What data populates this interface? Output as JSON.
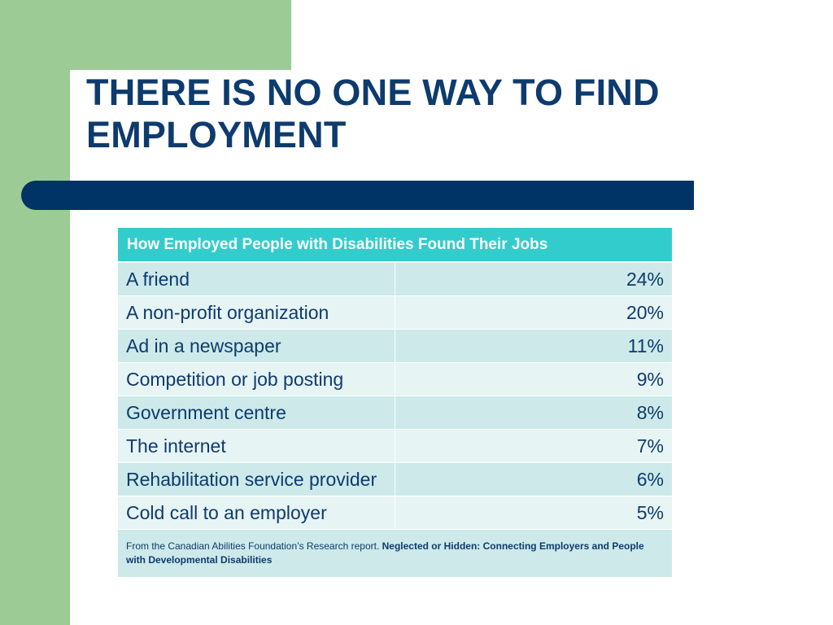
{
  "slide": {
    "title_lines": [
      "THERE IS NO ONE WAY TO FIND",
      "EMPLOYMENT"
    ]
  },
  "table": {
    "header": "How Employed People with Disabilities Found Their Jobs",
    "rows": [
      {
        "label": "A friend",
        "value": "24%"
      },
      {
        "label": "A non-profit organization",
        "value": "20%"
      },
      {
        "label": "Ad in a newspaper",
        "value": "11%"
      },
      {
        "label": "Competition or job posting",
        "value": "9%"
      },
      {
        "label": "Government centre",
        "value": "8%"
      },
      {
        "label": "The internet",
        "value": "7%"
      },
      {
        "label": "Rehabilitation service provider",
        "value": "6%"
      },
      {
        "label": "Cold call to an employer",
        "value": "5%"
      }
    ],
    "source_text": "From the Canadian Abilities Foundation’s Research report. ",
    "source_bold": "Neglected or Hidden: Connecting Employers and People with  Developmental Disabilities"
  },
  "colors": {
    "accent_green": "#9ccb95",
    "navy_bar": "#003366",
    "title_text": "#0e3b6e",
    "table_header": "#33cccc",
    "row_dark": "#cde9ea",
    "row_light": "#e7f4f4"
  }
}
